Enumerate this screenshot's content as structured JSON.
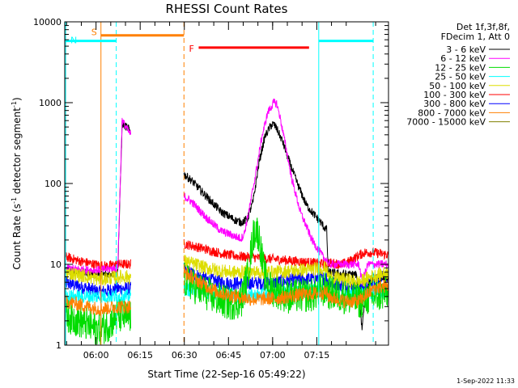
{
  "chart_data": {
    "type": "line",
    "title": "RHESSI Count Rates",
    "xlabel": "Start Time (22-Sep-16 05:49:22)",
    "ylabel_parts": [
      "Count Rate (s",
      "-1",
      " detector segment",
      "-1",
      ")"
    ],
    "yscale": "log",
    "ylim": [
      1,
      10000
    ],
    "xlim_minutes_after_start": [
      0,
      110
    ],
    "x_ticks": [
      {
        "label": "06:00",
        "minutes": 10.63
      },
      {
        "label": "06:15",
        "minutes": 25.63
      },
      {
        "label": "06:30",
        "minutes": 40.63
      },
      {
        "label": "06:45",
        "minutes": 55.63
      },
      {
        "label": "07:00",
        "minutes": 70.63
      },
      {
        "label": "07:15",
        "minutes": 85.63
      }
    ],
    "y_ticks": [
      {
        "label": "1",
        "value": 1
      },
      {
        "label": "10",
        "value": 10
      },
      {
        "label": "100",
        "value": 100
      },
      {
        "label": "1000",
        "value": 1000
      },
      {
        "label": "10000",
        "value": 10000
      }
    ],
    "legend_header": [
      "Det 1f,3f,8f,",
      "FDecim 1, Att 0"
    ],
    "data_gap_minutes": [
      22.5,
      40.5
    ],
    "series": [
      {
        "name": "3 - 6 keV",
        "color": "#000000",
        "noise": 0.12,
        "points": [
          [
            0,
            8.5
          ],
          [
            5,
            8
          ],
          [
            10,
            7.5
          ],
          [
            14,
            7.5
          ],
          [
            18,
            8
          ],
          [
            19.5,
            550
          ],
          [
            21.5,
            480
          ],
          [
            22,
            460
          ],
          [
            40.5,
            130
          ],
          [
            43,
            110
          ],
          [
            48,
            70
          ],
          [
            53,
            45
          ],
          [
            58,
            35
          ],
          [
            60,
            33
          ],
          [
            62,
            36
          ],
          [
            64,
            60
          ],
          [
            66,
            180
          ],
          [
            68,
            380
          ],
          [
            70,
            520
          ],
          [
            71,
            540
          ],
          [
            72,
            480
          ],
          [
            74,
            330
          ],
          [
            76,
            200
          ],
          [
            79,
            100
          ],
          [
            82,
            55
          ],
          [
            85,
            40
          ],
          [
            87,
            33
          ],
          [
            88,
            29
          ],
          [
            89,
            27
          ],
          [
            89.5,
            8
          ],
          [
            95,
            7.5
          ],
          [
            99,
            7.5
          ],
          [
            100,
            4
          ],
          [
            101,
            1.6
          ],
          [
            102,
            4
          ],
          [
            104,
            6.5
          ],
          [
            108,
            7
          ],
          [
            110,
            6.5
          ]
        ]
      },
      {
        "name": "6 - 12 keV",
        "color": "#ff00ff",
        "noise": 0.12,
        "points": [
          [
            0,
            9
          ],
          [
            8,
            8.5
          ],
          [
            12,
            8.5
          ],
          [
            18,
            9
          ],
          [
            19.5,
            600
          ],
          [
            21.5,
            450
          ],
          [
            22,
            420
          ],
          [
            40.5,
            70
          ],
          [
            43,
            60
          ],
          [
            48,
            38
          ],
          [
            53,
            26
          ],
          [
            58,
            22
          ],
          [
            60,
            21
          ],
          [
            61,
            24
          ],
          [
            63,
            55
          ],
          [
            65,
            140
          ],
          [
            67,
            380
          ],
          [
            69,
            760
          ],
          [
            71,
            1000
          ],
          [
            72,
            980
          ],
          [
            73,
            700
          ],
          [
            75,
            300
          ],
          [
            77,
            120
          ],
          [
            80,
            45
          ],
          [
            84,
            20
          ],
          [
            88,
            12
          ],
          [
            89,
            11.5
          ],
          [
            89.5,
            10
          ],
          [
            100,
            10
          ],
          [
            101,
            6
          ],
          [
            103,
            10
          ],
          [
            110,
            10
          ]
        ]
      },
      {
        "name": "12 - 25 keV",
        "color": "#00dd00",
        "noise": 0.5,
        "points": [
          [
            0,
            2.4
          ],
          [
            5,
            2
          ],
          [
            10,
            1.6
          ],
          [
            14,
            1.7
          ],
          [
            18,
            2.3
          ],
          [
            22,
            2.2
          ],
          [
            40.5,
            6.5
          ],
          [
            46,
            4.8
          ],
          [
            52,
            3.7
          ],
          [
            56,
            3.3
          ],
          [
            60,
            3.5
          ],
          [
            62,
            7
          ],
          [
            63,
            12
          ],
          [
            64,
            22
          ],
          [
            65,
            28
          ],
          [
            66,
            22
          ],
          [
            67,
            12
          ],
          [
            68,
            7
          ],
          [
            70,
            5
          ],
          [
            76,
            4
          ],
          [
            84,
            4.2
          ],
          [
            89,
            5
          ],
          [
            89.5,
            4.5
          ],
          [
            95,
            4
          ],
          [
            100,
            3.5
          ],
          [
            103,
            3.8
          ],
          [
            110,
            4.5
          ]
        ]
      },
      {
        "name": "25 - 50 keV",
        "color": "#00ffff",
        "noise": 0.2,
        "points": [
          [
            0,
            4
          ],
          [
            22,
            4
          ],
          [
            40.5,
            5
          ],
          [
            60,
            4
          ],
          [
            89,
            5
          ],
          [
            89.5,
            4
          ],
          [
            110,
            4.5
          ]
        ]
      },
      {
        "name": "50 - 100 keV",
        "color": "#dddd00",
        "noise": 0.2,
        "points": [
          [
            0,
            8
          ],
          [
            8,
            7
          ],
          [
            12,
            6.5
          ],
          [
            18,
            7
          ],
          [
            22,
            7
          ],
          [
            40.5,
            11
          ],
          [
            48,
            9
          ],
          [
            56,
            8
          ],
          [
            64,
            8
          ],
          [
            72,
            8
          ],
          [
            80,
            8.5
          ],
          [
            89,
            9
          ],
          [
            89.5,
            7
          ],
          [
            95,
            6.5
          ],
          [
            100,
            6
          ],
          [
            104,
            7
          ],
          [
            110,
            8
          ]
        ]
      },
      {
        "name": "100 - 300 keV",
        "color": "#ff0000",
        "noise": 0.14,
        "points": [
          [
            0,
            12.5
          ],
          [
            5,
            11
          ],
          [
            10,
            10
          ],
          [
            14,
            9.5
          ],
          [
            18,
            10
          ],
          [
            22,
            10
          ],
          [
            40.5,
            18
          ],
          [
            46,
            16
          ],
          [
            52,
            14
          ],
          [
            56,
            13
          ],
          [
            60,
            12.5
          ],
          [
            66,
            12
          ],
          [
            72,
            11.5
          ],
          [
            78,
            11
          ],
          [
            84,
            10.5
          ],
          [
            89,
            10
          ],
          [
            89.5,
            10.5
          ],
          [
            94,
            10
          ],
          [
            97,
            11
          ],
          [
            100,
            13
          ],
          [
            102,
            14
          ],
          [
            105,
            14
          ],
          [
            110,
            13
          ]
        ]
      },
      {
        "name": "300 - 800 keV",
        "color": "#0000ff",
        "noise": 0.2,
        "points": [
          [
            0,
            6
          ],
          [
            8,
            5
          ],
          [
            12,
            4.5
          ],
          [
            18,
            5
          ],
          [
            22,
            5
          ],
          [
            40.5,
            8.5
          ],
          [
            48,
            6.5
          ],
          [
            56,
            5.8
          ],
          [
            64,
            5.8
          ],
          [
            72,
            6
          ],
          [
            80,
            6.5
          ],
          [
            89,
            6.8
          ],
          [
            89.5,
            6
          ],
          [
            95,
            5.5
          ],
          [
            100,
            5
          ],
          [
            105,
            6.5
          ],
          [
            110,
            7
          ]
        ]
      },
      {
        "name": "800 - 7000 keV",
        "color": "#ff8000",
        "noise": 0.2,
        "points": [
          [
            0,
            3.5
          ],
          [
            8,
            3
          ],
          [
            12,
            2.8
          ],
          [
            18,
            3
          ],
          [
            22,
            3
          ],
          [
            40.5,
            8
          ],
          [
            46,
            6
          ],
          [
            52,
            4.5
          ],
          [
            58,
            4
          ],
          [
            64,
            3.7
          ],
          [
            72,
            3.8
          ],
          [
            80,
            4.2
          ],
          [
            89,
            4.5
          ],
          [
            89.5,
            4
          ],
          [
            95,
            3.5
          ],
          [
            100,
            3.5
          ],
          [
            105,
            5
          ],
          [
            110,
            5.5
          ]
        ]
      },
      {
        "name": "7000 - 15000 keV",
        "color": "#808000",
        "noise": 0.2,
        "points": []
      }
    ],
    "markers": [
      {
        "label": "S",
        "color": "#ff8000",
        "bar_minutes": [
          12.3,
          40.5
        ],
        "bar_value": 6800
      },
      {
        "label": "N",
        "color": "#00ffff",
        "bar_minutes": [
          0,
          17.5
        ],
        "bar_value": 5800
      },
      {
        "label": "F",
        "color": "#ff0000",
        "bar_minutes": [
          45.5,
          83.0
        ],
        "bar_value": 4800
      },
      {
        "label": "",
        "color": "#00ffff",
        "bar_minutes": [
          86.3,
          104.8
        ],
        "bar_value": 5800
      }
    ],
    "vertical_lines": [
      {
        "minutes": 0.3,
        "color": "#00ffff",
        "dash": false
      },
      {
        "minutes": 12.3,
        "color": "#ff8000",
        "dash": false
      },
      {
        "minutes": 17.5,
        "color": "#00ffff",
        "dash": true
      },
      {
        "minutes": 40.5,
        "color": "#ff8000",
        "dash": true
      },
      {
        "minutes": 86.3,
        "color": "#00ffff",
        "dash": false
      },
      {
        "minutes": 104.8,
        "color": "#00ffff",
        "dash": true
      }
    ],
    "footer": "1-Sep-2022 11:33"
  }
}
